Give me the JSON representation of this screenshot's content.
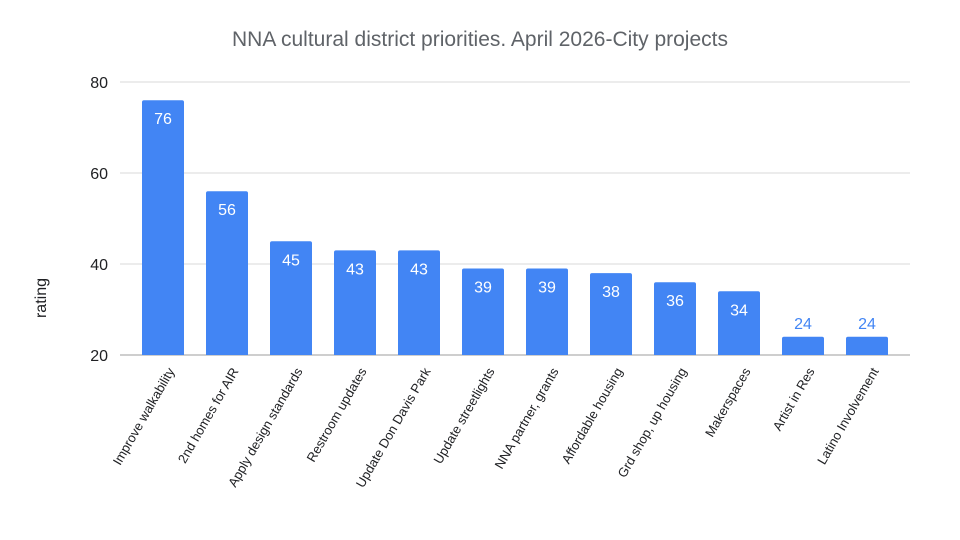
{
  "chart_data": {
    "type": "bar",
    "title": "NNA cultural district priorities. April 2026-City projects",
    "xlabel": "",
    "ylabel": "rating",
    "ylim": [
      20,
      80
    ],
    "yticks": [
      20,
      40,
      60,
      80
    ],
    "grid": true,
    "legend": "none",
    "bar_color": "#4285f4",
    "categories": [
      "Improve walkability",
      "2nd homes for AIR",
      "Apply design standards",
      "Restroom updates",
      "Update Don Davis Park",
      "Update streetlights",
      "NNA partner, grants",
      "Affordable housing",
      "Grd shop, up housing",
      "Makerspaces",
      "Artist in Res",
      "Latino Involvement"
    ],
    "values": [
      76,
      56,
      45,
      43,
      43,
      39,
      39,
      38,
      36,
      34,
      24,
      24
    ]
  }
}
